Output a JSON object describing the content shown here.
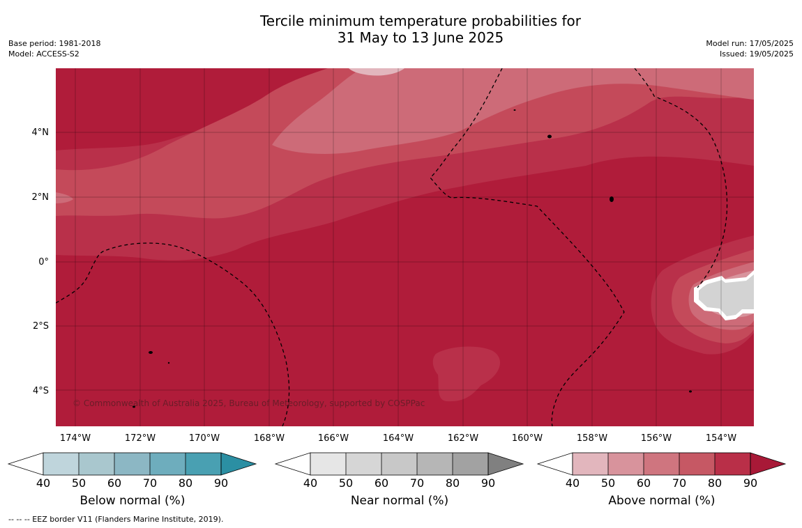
{
  "title_line1": "Tercile minimum temperature probabilities for",
  "title_line2": "31 May to 13 June 2025",
  "meta_left": {
    "base_period": "Base period: 1981-2018",
    "model": "Model: ACCESS-S2"
  },
  "meta_right": {
    "model_run": "Model run: 17/05/2025",
    "issued": "Issued: 19/05/2025"
  },
  "lat_labels": [
    "4°N",
    "2°N",
    "0°",
    "2°S",
    "4°S"
  ],
  "lon_labels": [
    "174°W",
    "172°W",
    "170°W",
    "168°W",
    "166°W",
    "164°W",
    "162°W",
    "160°W",
    "158°W",
    "156°W",
    "154°W"
  ],
  "credit": "© Commonwealth of Australia 2025, Bureau of Meteorology, supported by COSPPac",
  "legends": [
    {
      "title": "Below normal (%)",
      "ticks": [
        "40",
        "50",
        "60",
        "70",
        "80",
        "90"
      ],
      "colors": [
        "#bfd5dc",
        "#a9c7ce",
        "#8cb7c4",
        "#6eadbd",
        "#49a0b2",
        "#2b8fa3"
      ]
    },
    {
      "title": "Near normal (%)",
      "ticks": [
        "40",
        "50",
        "60",
        "70",
        "80",
        "90"
      ],
      "colors": [
        "#e6e6e6",
        "#d6d6d6",
        "#c8c8c8",
        "#b6b6b6",
        "#a2a2a2",
        "#808080"
      ]
    },
    {
      "title": "Above normal (%)",
      "ticks": [
        "40",
        "50",
        "60",
        "70",
        "80",
        "90"
      ],
      "colors": [
        "#e2b6bd",
        "#d8939c",
        "#cf757f",
        "#c65864",
        "#b92f48",
        "#a81937"
      ]
    }
  ],
  "footer": "--  --  -- EEZ border V11 (Flanders Marine Institute, 2019).",
  "colors": {
    "above_40": "#e2b6bd",
    "above_60": "#cd6b78",
    "above_70": "#c44a5a",
    "above_80": "#b9304a",
    "above_90": "#b01c3a",
    "near_normal": "#d3d3d3"
  }
}
